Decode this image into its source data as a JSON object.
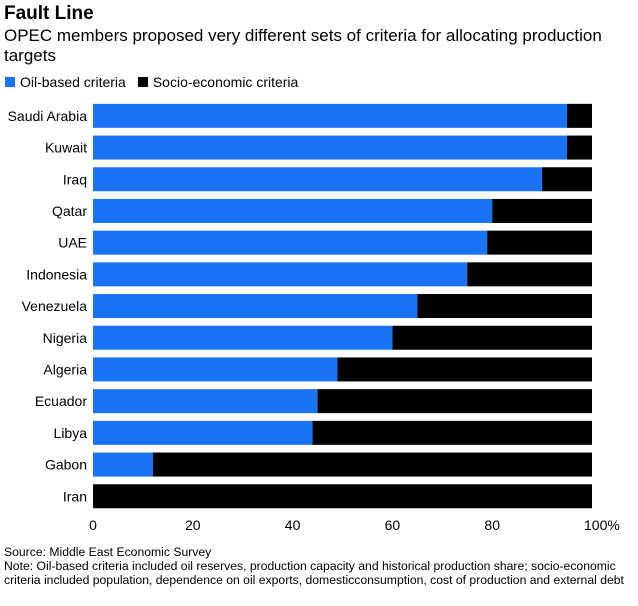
{
  "title": "Fault Line",
  "subtitle": "OPEC members proposed very different sets of criteria for allocating production targets",
  "source": "Source: Middle East Economic Survey",
  "note": "Note: Oil-based criteria included oil reserves, production capacity and historical production share; socio-economic criteria included population, dependence on oil exports, domesticconsumption, cost of production and external debt",
  "colors": {
    "oil": "#1a73f5",
    "socio": "#000000"
  },
  "chart_data": {
    "type": "bar",
    "orientation": "horizontal",
    "stacked": true,
    "categories": [
      "Saudi Arabia",
      "Kuwait",
      "Iraq",
      "Qatar",
      "UAE",
      "Indonesia",
      "Venezuela",
      "Nigeria",
      "Algeria",
      "Ecuador",
      "Libya",
      "Gabon",
      "Iran"
    ],
    "series": [
      {
        "name": "Oil-based criteria",
        "values": [
          95,
          95,
          90,
          80,
          79,
          75,
          65,
          60,
          49,
          45,
          44,
          12,
          0
        ]
      },
      {
        "name": "Socio-economic criteria",
        "values": [
          5,
          5,
          10,
          20,
          21,
          25,
          35,
          40,
          51,
          55,
          56,
          88,
          100
        ]
      }
    ],
    "xlim": [
      0,
      100
    ],
    "xticks": [
      "0",
      "20",
      "40",
      "60",
      "80",
      "100%"
    ],
    "xtick_values": [
      0,
      20,
      40,
      60,
      80,
      100
    ],
    "legend": "top-left",
    "grid": false
  }
}
